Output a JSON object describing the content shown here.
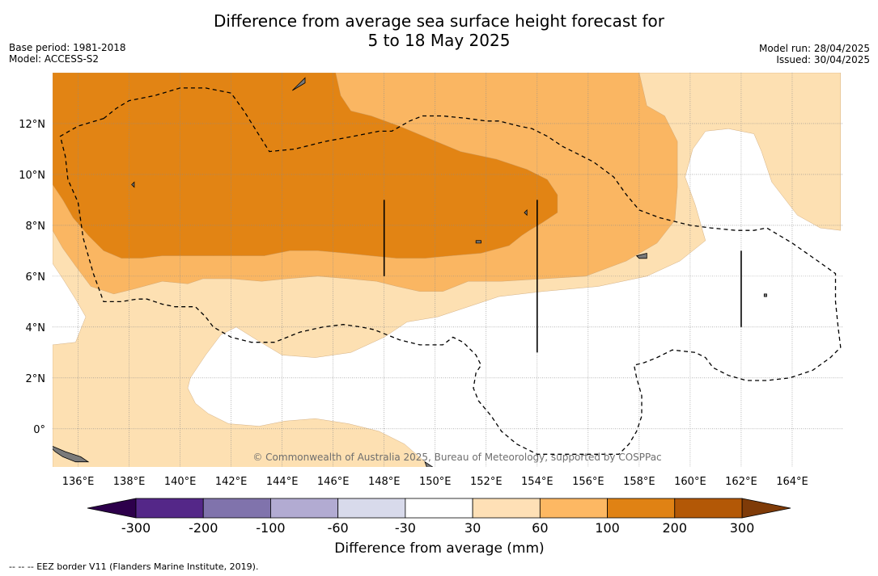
{
  "title_line1": "Difference from average sea surface height forecast for",
  "title_line2": "5 to 18 May 2025",
  "base_period": "Base period: 1981-2018",
  "model": "Model: ACCESS-S2",
  "model_run": "Model run: 28/04/2025",
  "issued": "Issued: 30/04/2025",
  "credit": "© Commonwealth of Australia 2025, Bureau of Meteorology, supported by COSPPac",
  "footnote": "-- -- -- EEZ border V11 (Flanders Marine Institute, 2019).",
  "map": {
    "lon_range": [
      135,
      166
    ],
    "lat_range": [
      -1.5,
      14
    ],
    "lon_ticks": [
      {
        "value": 136,
        "label": "136°E"
      },
      {
        "value": 138,
        "label": "138°E"
      },
      {
        "value": 140,
        "label": "140°E"
      },
      {
        "value": 142,
        "label": "142°E"
      },
      {
        "value": 144,
        "label": "144°E"
      },
      {
        "value": 146,
        "label": "146°E"
      },
      {
        "value": 148,
        "label": "148°E"
      },
      {
        "value": 150,
        "label": "150°E"
      },
      {
        "value": 152,
        "label": "152°E"
      },
      {
        "value": 154,
        "label": "154°E"
      },
      {
        "value": 156,
        "label": "156°E"
      },
      {
        "value": 158,
        "label": "158°E"
      },
      {
        "value": 160,
        "label": "160°E"
      },
      {
        "value": 162,
        "label": "162°E"
      },
      {
        "value": 164,
        "label": "164°E"
      }
    ],
    "lat_ticks": [
      {
        "value": 0,
        "label": "0°"
      },
      {
        "value": 2,
        "label": "2°N"
      },
      {
        "value": 4,
        "label": "4°N"
      },
      {
        "value": 6,
        "label": "6°N"
      },
      {
        "value": 8,
        "label": "8°N"
      },
      {
        "value": 10,
        "label": "10°N"
      },
      {
        "value": 12,
        "label": "12°N"
      }
    ],
    "contour_levels": [
      {
        "min_mm": 30,
        "color": "#fde0b2",
        "polygons": [
          [
            [
              135,
              14
            ],
            [
              165.9,
              14
            ],
            [
              165.9,
              7.8
            ],
            [
              165.1,
              7.9
            ],
            [
              164.2,
              8.4
            ],
            [
              163.2,
              9.7
            ],
            [
              162.8,
              10.9
            ],
            [
              162.5,
              11.6
            ],
            [
              161.5,
              11.8
            ],
            [
              160.6,
              11.7
            ],
            [
              160.1,
              11.0
            ],
            [
              159.8,
              9.9
            ],
            [
              160.2,
              8.8
            ],
            [
              160.6,
              7.4
            ],
            [
              159.6,
              6.6
            ],
            [
              158.3,
              6.0
            ],
            [
              156.4,
              5.6
            ],
            [
              154.2,
              5.4
            ],
            [
              152.5,
              5.2
            ],
            [
              151.3,
              4.8
            ],
            [
              150.1,
              4.4
            ],
            [
              148.9,
              4.2
            ],
            [
              148.0,
              3.6
            ],
            [
              146.7,
              3.0
            ],
            [
              145.3,
              2.8
            ],
            [
              144.0,
              2.9
            ],
            [
              143.0,
              3.5
            ],
            [
              142.2,
              4.0
            ],
            [
              141.6,
              3.7
            ],
            [
              141.0,
              2.9
            ],
            [
              140.4,
              2.0
            ],
            [
              140.3,
              1.6
            ],
            [
              140.6,
              1.0
            ],
            [
              141.1,
              0.6
            ],
            [
              141.9,
              0.2
            ],
            [
              143.1,
              0.1
            ],
            [
              144.1,
              0.3
            ],
            [
              145.3,
              0.4
            ],
            [
              146.6,
              0.2
            ],
            [
              147.8,
              -0.1
            ],
            [
              148.8,
              -0.6
            ],
            [
              149.6,
              -1.3
            ],
            [
              150.0,
              -1.6
            ],
            [
              135,
              -1.6
            ],
            [
              135,
              3.3
            ],
            [
              135.9,
              3.4
            ],
            [
              136.3,
              4.4
            ],
            [
              135.9,
              5.1
            ],
            [
              135.4,
              5.9
            ],
            [
              135,
              6.5
            ]
          ]
        ]
      },
      {
        "min_mm": 60,
        "color": "#fab662",
        "polygons": [
          [
            [
              135,
              14
            ],
            [
              158.0,
              14
            ],
            [
              158.3,
              12.7
            ],
            [
              159.0,
              12.3
            ],
            [
              159.5,
              11.3
            ],
            [
              159.5,
              9.5
            ],
            [
              159.4,
              8.2
            ],
            [
              158.7,
              7.3
            ],
            [
              157.5,
              6.6
            ],
            [
              155.9,
              6.0
            ],
            [
              154.3,
              5.9
            ],
            [
              152.6,
              5.8
            ],
            [
              151.3,
              5.8
            ],
            [
              150.3,
              5.4
            ],
            [
              149.4,
              5.4
            ],
            [
              148.5,
              5.6
            ],
            [
              147.7,
              5.8
            ],
            [
              146.6,
              5.9
            ],
            [
              145.4,
              6.0
            ],
            [
              144.2,
              5.9
            ],
            [
              143.2,
              5.8
            ],
            [
              142.0,
              5.9
            ],
            [
              140.9,
              5.9
            ],
            [
              140.3,
              5.7
            ],
            [
              139.3,
              5.8
            ],
            [
              138.2,
              5.5
            ],
            [
              137.4,
              5.3
            ],
            [
              136.5,
              5.6
            ],
            [
              135.9,
              6.4
            ],
            [
              135.4,
              7.1
            ],
            [
              135,
              7.8
            ]
          ]
        ]
      },
      {
        "min_mm": 100,
        "color": "#e28414",
        "polygons": [
          [
            [
              135,
              14
            ],
            [
              146.1,
              14
            ],
            [
              146.3,
              13.1
            ],
            [
              146.7,
              12.5
            ],
            [
              147.5,
              12.3
            ],
            [
              148.6,
              11.9
            ],
            [
              149.8,
              11.4
            ],
            [
              151.0,
              10.9
            ],
            [
              152.4,
              10.6
            ],
            [
              153.6,
              10.2
            ],
            [
              154.4,
              9.8
            ],
            [
              154.8,
              9.2
            ],
            [
              154.8,
              8.5
            ],
            [
              154.2,
              8.1
            ],
            [
              153.7,
              7.8
            ],
            [
              153.4,
              7.6
            ],
            [
              152.9,
              7.2
            ],
            [
              151.8,
              6.9
            ],
            [
              150.6,
              6.8
            ],
            [
              149.6,
              6.7
            ],
            [
              148.5,
              6.7
            ],
            [
              147.5,
              6.8
            ],
            [
              146.5,
              6.9
            ],
            [
              145.4,
              7.0
            ],
            [
              144.3,
              7.0
            ],
            [
              143.3,
              6.8
            ],
            [
              142.4,
              6.8
            ],
            [
              141.3,
              6.8
            ],
            [
              140.3,
              6.8
            ],
            [
              139.3,
              6.8
            ],
            [
              138.5,
              6.7
            ],
            [
              137.7,
              6.7
            ],
            [
              137.0,
              7.0
            ],
            [
              136.4,
              7.6
            ],
            [
              135.8,
              8.3
            ],
            [
              135.4,
              9.0
            ],
            [
              135,
              9.6
            ]
          ]
        ]
      }
    ],
    "eez_lines": [
      [
        [
          137.0,
          12.2
        ],
        [
          137.5,
          12.6
        ],
        [
          138.0,
          12.9
        ],
        [
          139.0,
          13.1
        ],
        [
          140.0,
          13.4
        ],
        [
          141.0,
          13.4
        ],
        [
          142.0,
          13.2
        ],
        [
          142.5,
          12.5
        ],
        [
          143.0,
          11.7
        ],
        [
          143.5,
          10.9
        ],
        [
          144.5,
          11.0
        ],
        [
          145.7,
          11.3
        ],
        [
          146.8,
          11.5
        ],
        [
          147.8,
          11.7
        ],
        [
          148.3,
          11.7
        ],
        [
          149.0,
          12.1
        ],
        [
          149.5,
          12.3
        ],
        [
          150.3,
          12.3
        ],
        [
          151.3,
          12.2
        ],
        [
          152.0,
          12.1
        ],
        [
          152.5,
          12.1
        ],
        [
          153.3,
          11.9
        ],
        [
          153.8,
          11.8
        ],
        [
          154.4,
          11.5
        ],
        [
          155.0,
          11.1
        ],
        [
          155.6,
          10.8
        ],
        [
          156.2,
          10.5
        ],
        [
          156.6,
          10.2
        ],
        [
          157.0,
          9.9
        ],
        [
          157.5,
          9.2
        ],
        [
          158.0,
          8.6
        ],
        [
          158.8,
          8.3
        ],
        [
          160.0,
          8.0
        ],
        [
          160.8,
          7.9
        ],
        [
          161.8,
          7.8
        ],
        [
          162.5,
          7.8
        ],
        [
          163.0,
          7.9
        ],
        [
          164.0,
          7.3
        ],
        [
          165.0,
          6.6
        ],
        [
          165.7,
          6.1
        ],
        [
          165.7,
          5.0
        ],
        [
          165.8,
          4.0
        ],
        [
          165.9,
          3.2
        ],
        [
          165.5,
          2.8
        ],
        [
          164.8,
          2.3
        ],
        [
          163.9,
          2.0
        ],
        [
          163.0,
          1.9
        ],
        [
          162.2,
          1.9
        ],
        [
          161.5,
          2.1
        ],
        [
          160.9,
          2.4
        ],
        [
          160.6,
          2.8
        ],
        [
          160.2,
          3.0
        ],
        [
          159.3,
          3.1
        ],
        [
          158.7,
          2.8
        ],
        [
          158.2,
          2.6
        ],
        [
          157.8,
          2.5
        ],
        [
          157.9,
          2.0
        ],
        [
          158.1,
          1.3
        ],
        [
          158.1,
          0.5
        ],
        [
          157.9,
          -0.1
        ],
        [
          157.6,
          -0.6
        ],
        [
          157.2,
          -1.0
        ],
        [
          155.5,
          -1.0
        ],
        [
          154.0,
          -1.0
        ],
        [
          153.2,
          -0.6
        ],
        [
          152.6,
          -0.1
        ],
        [
          152.2,
          0.5
        ],
        [
          151.7,
          1.1
        ],
        [
          151.5,
          1.6
        ],
        [
          151.6,
          2.2
        ],
        [
          151.8,
          2.5
        ],
        [
          151.6,
          2.9
        ],
        [
          151.1,
          3.4
        ],
        [
          150.7,
          3.6
        ],
        [
          150.3,
          3.3
        ],
        [
          149.4,
          3.3
        ],
        [
          148.6,
          3.5
        ],
        [
          147.6,
          3.9
        ],
        [
          147.1,
          4.0
        ],
        [
          146.4,
          4.1
        ],
        [
          145.6,
          4.0
        ],
        [
          144.7,
          3.8
        ],
        [
          143.7,
          3.4
        ],
        [
          142.8,
          3.4
        ],
        [
          142.0,
          3.6
        ],
        [
          141.3,
          4.0
        ],
        [
          141.0,
          4.4
        ],
        [
          140.6,
          4.8
        ],
        [
          139.8,
          4.8
        ],
        [
          139.3,
          4.9
        ],
        [
          138.7,
          5.1
        ],
        [
          138.3,
          5.1
        ],
        [
          137.7,
          5.0
        ],
        [
          137.0,
          5.0
        ],
        [
          136.6,
          6.1
        ],
        [
          136.2,
          7.5
        ],
        [
          136.0,
          8.9
        ],
        [
          135.6,
          9.8
        ],
        [
          135.5,
          10.7
        ],
        [
          135.3,
          11.5
        ],
        [
          136.0,
          11.9
        ],
        [
          137.0,
          12.2
        ]
      ]
    ],
    "islands": [
      [
        [
          144.4,
          13.3
        ],
        [
          144.9,
          13.6
        ],
        [
          144.9,
          13.8
        ],
        [
          144.7,
          13.6
        ],
        [
          144.5,
          13.4
        ]
      ],
      [
        [
          157.9,
          6.8
        ],
        [
          158.3,
          6.9
        ],
        [
          158.3,
          6.7
        ],
        [
          158.0,
          6.7
        ]
      ],
      [
        [
          134.8,
          -0.6
        ],
        [
          135.5,
          -0.9
        ],
        [
          136.1,
          -1.1
        ],
        [
          136.4,
          -1.3
        ],
        [
          135.9,
          -1.3
        ],
        [
          135.4,
          -1.1
        ],
        [
          135.1,
          -0.9
        ]
      ],
      [
        [
          149.6,
          -1.3
        ],
        [
          149.9,
          -1.5
        ],
        [
          149.7,
          -1.6
        ]
      ],
      [
        [
          153.5,
          8.5
        ],
        [
          153.6,
          8.6
        ],
        [
          153.6,
          8.4
        ]
      ],
      [
        [
          151.6,
          7.4
        ],
        [
          151.8,
          7.4
        ],
        [
          151.8,
          7.3
        ],
        [
          151.6,
          7.3
        ]
      ],
      [
        [
          138.1,
          9.6
        ],
        [
          138.2,
          9.7
        ],
        [
          138.2,
          9.5
        ]
      ],
      [
        [
          162.9,
          5.3
        ],
        [
          163.0,
          5.3
        ],
        [
          163.0,
          5.2
        ],
        [
          162.9,
          5.2
        ]
      ]
    ],
    "vertical_segments": [
      {
        "lon": 148.0,
        "lat_from": 6.0,
        "lat_to": 9.0
      },
      {
        "lon": 154.0,
        "lat_from": 3.0,
        "lat_to": 9.0
      },
      {
        "lon": 162.0,
        "lat_from": 4.0,
        "lat_to": 7.0
      }
    ]
  },
  "colorbar": {
    "title": "Difference from average (mm)",
    "under_color": "#2d004b",
    "over_color": "#7f3b08",
    "bins": [
      {
        "from": -300,
        "to": -200,
        "color": "#542788"
      },
      {
        "from": -200,
        "to": -100,
        "color": "#8073ac"
      },
      {
        "from": -100,
        "to": -60,
        "color": "#b2abd2"
      },
      {
        "from": -60,
        "to": -30,
        "color": "#d8daeb"
      },
      {
        "from": -30,
        "to": 30,
        "color": "#ffffff"
      },
      {
        "from": 30,
        "to": 60,
        "color": "#fee0b6"
      },
      {
        "from": 60,
        "to": 100,
        "color": "#fdb863"
      },
      {
        "from": 100,
        "to": 200,
        "color": "#e08214"
      },
      {
        "from": 200,
        "to": 300,
        "color": "#b35806"
      }
    ],
    "tick_labels": [
      "-300",
      "-200",
      "-100",
      "-60",
      "-30",
      "30",
      "60",
      "100",
      "200",
      "300"
    ]
  }
}
